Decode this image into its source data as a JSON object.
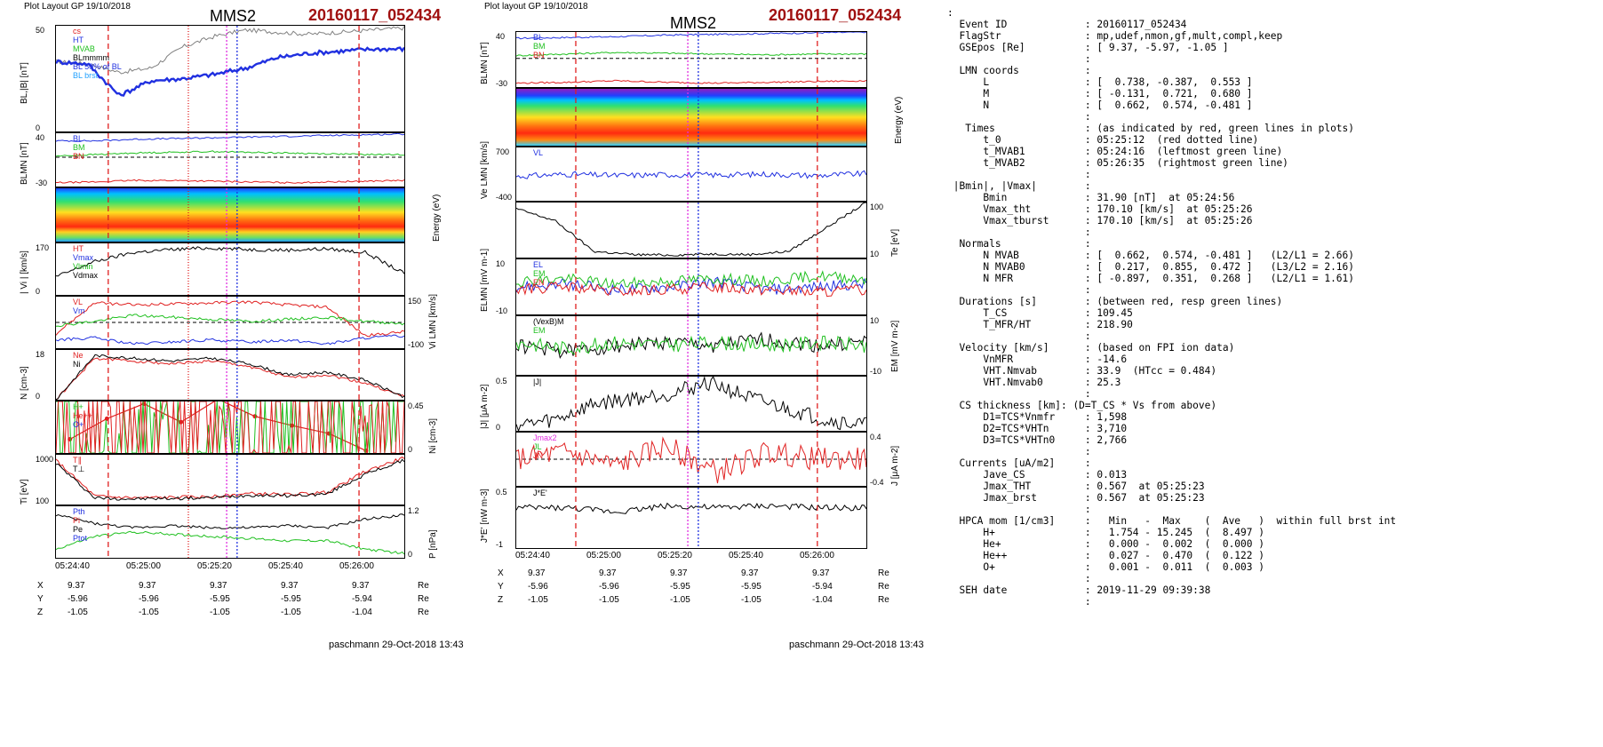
{
  "left_plot": {
    "header": "Plot Layout GP 19/10/2018",
    "title": "MMS2",
    "event": "20160117_052434",
    "footer": "paschmann 29-Oct-2018 13:43",
    "time_ticks": [
      "05:24:40",
      "05:25:00",
      "05:25:20",
      "05:25:40",
      "05:26:00"
    ],
    "coords": {
      "X": {
        "label": "X",
        "values": [
          "9.37",
          "9.37",
          "9.37",
          "9.37",
          "9.37"
        ],
        "unit": "Re"
      },
      "Y": {
        "label": "Y",
        "values": [
          "-5.96",
          "-5.96",
          "-5.95",
          "-5.95",
          "-5.94"
        ],
        "unit": "Re"
      },
      "Z": {
        "label": "Z",
        "values": [
          "-1.05",
          "-1.05",
          "-1.05",
          "-1.05",
          "-1.04"
        ],
        "unit": "Re"
      }
    },
    "ylabels": [
      "BL,|B| [nT]",
      "BLMN [nT]",
      "Energy (eV)",
      "| Vi | [km/s]",
      "Vi LMN [km/s]",
      "N [cm-3]",
      "Ni [cm-3]",
      "Ti [eV]",
      "P [nPa]"
    ],
    "legends": {
      "p1": [
        "cs",
        "HT",
        "MVAB",
        "BLmmmm",
        "BL 50% of BL",
        "BL brst"
      ],
      "p2": [
        "BL",
        "BM",
        "BN"
      ],
      "p4": [
        "HT",
        "Vmax",
        "Vlmin",
        "Vdmax"
      ],
      "p5": [
        "VL",
        "Vm"
      ],
      "p6": [
        "Ne",
        "Ni"
      ],
      "p7": [
        "H+",
        "He++",
        "O+"
      ],
      "p8": [
        "T∥",
        "T⊥"
      ],
      "p9": [
        "Pth",
        "Pi",
        "Pe",
        "Ptot"
      ]
    }
  },
  "mid_plot": {
    "header": "Plot layout GP 19/10/2018",
    "title": "MMS2",
    "event": "20160117_052434",
    "footer": "paschmann 29-Oct-2018 13:43",
    "time_ticks": [
      "05:24:40",
      "05:25:00",
      "05:25:20",
      "05:25:40",
      "05:26:00"
    ],
    "coords": {
      "X": {
        "label": "X",
        "values": [
          "9.37",
          "9.37",
          "9.37",
          "9.37",
          "9.37"
        ],
        "unit": "Re"
      },
      "Y": {
        "label": "Y",
        "values": [
          "-5.96",
          "-5.96",
          "-5.95",
          "-5.95",
          "-5.94"
        ],
        "unit": "Re"
      },
      "Z": {
        "label": "Z",
        "values": [
          "-1.05",
          "-1.05",
          "-1.05",
          "-1.05",
          "-1.04"
        ],
        "unit": "Re"
      }
    },
    "ylabels": [
      "BLMN [nT]",
      "Energy (eV)",
      "Ve LMN [km/s]",
      "Te [eV]",
      "ELMN [mV m-1]",
      "EM [mV m-2]",
      "|J| [μA m-2]",
      "J [μA m-2]",
      "J*E' [nW m-3]"
    ],
    "legends": {
      "p1": [
        "BL",
        "BM",
        "BN"
      ],
      "p3": [
        "VL"
      ],
      "p4": [],
      "p5": [
        "EL",
        "EM",
        "EN"
      ],
      "p6": [
        "(VexB)M",
        "EM"
      ],
      "p7": [
        "|J|"
      ],
      "p8": [
        "Jmax2",
        "JL",
        "JN"
      ],
      "p9": [
        "J*E'"
      ]
    }
  },
  "chart_data": [
    {
      "type": "line",
      "title": "MMS2 20160117_052434",
      "xlabel": "time",
      "x_ticks": [
        "05:24:40",
        "05:25:00",
        "05:25:20",
        "05:25:40",
        "05:26:00"
      ],
      "panels": [
        {
          "ylabel": "BL,|B| [nT]",
          "ylim": [
            0,
            50
          ],
          "series": [
            {
              "name": "|B|",
              "values": [
                33,
                32,
                28,
                30,
                40,
                45,
                48,
                47,
                46,
                47,
                48,
                49
              ]
            },
            {
              "name": "BL",
              "values": [
                33,
                32,
                17,
                24,
                25,
                27,
                30,
                35,
                37,
                38,
                39,
                39
              ]
            }
          ]
        },
        {
          "ylabel": "BLMN [nT]",
          "ylim": [
            -30,
            40
          ],
          "series": [
            {
              "name": "BL",
              "values": [
                30,
                30,
                32,
                33,
                34,
                35,
                36,
                37,
                38,
                39
              ]
            },
            {
              "name": "BM",
              "values": [
                10,
                12,
                14,
                15,
                16,
                15,
                14,
                13,
                12,
                12
              ]
            },
            {
              "name": "BN",
              "values": [
                -25,
                -24,
                -22,
                -22,
                -23,
                -24,
                -25,
                -24,
                -23,
                -22
              ]
            }
          ]
        },
        {
          "ylabel": "Energy (eV)",
          "ylim": [
            10,
            10000
          ],
          "type": "heatmap"
        },
        {
          "ylabel": "| Vi | [km/s]",
          "ylim": [
            0,
            170
          ],
          "series": [
            {
              "name": "|Vi|",
              "values": [
                60,
                110,
                140,
                150,
                155,
                150,
                148,
                152,
                140,
                70
              ]
            }
          ]
        },
        {
          "ylabel": "Vi LMN [km/s]",
          "ylim": [
            -100,
            150
          ],
          "series": [
            {
              "name": "VL",
              "values": [
                -30,
                120,
                110,
                115,
                120,
                125,
                110,
                100,
                -40,
                -20
              ]
            },
            {
              "name": "VM",
              "values": [
                10,
                30,
                60,
                50,
                40,
                30,
                40,
                50,
                30,
                20
              ]
            },
            {
              "name": "VN",
              "values": [
                -60,
                -50,
                -80,
                -70,
                -60,
                -70,
                -60,
                -80,
                -50,
                -40
              ]
            }
          ]
        },
        {
          "ylabel": "N [cm-3]",
          "ylim": [
            0,
            18
          ],
          "series": [
            {
              "name": "Ne",
              "values": [
                0,
                15,
                14,
                13,
                14,
                12,
                8,
                9,
                6,
                1
              ]
            },
            {
              "name": "Ni",
              "values": [
                0,
                16,
                15,
                14,
                15,
                13,
                9,
                10,
                7,
                1
              ]
            }
          ]
        },
        {
          "ylabel": "Ni [cm-3]",
          "ylim": [
            0,
            0.45
          ],
          "series": [
            {
              "name": "He++",
              "x": [
                "05:24:35",
                "05:24:50",
                "05:25:00",
                "05:25:10",
                "05:25:20",
                "05:25:30",
                "05:25:45",
                "05:25:55",
                "05:26:05"
              ],
              "values": [
                0.12,
                0.3,
                0.43,
                0.27,
                0.47,
                0.32,
                0.24,
                0.17,
                0.02
              ]
            },
            {
              "name": "H+",
              "values": [
                0.0,
                0.0,
                0.0,
                0.0,
                0.0,
                0.0,
                0.0,
                0.0,
                0.0
              ]
            },
            {
              "name": "O+",
              "values": [
                0.0,
                0.0,
                0.0,
                0.0,
                0.0,
                0.0,
                0.0,
                0.0,
                0.0
              ]
            }
          ]
        },
        {
          "ylabel": "Ti [eV]",
          "ylim": [
            100,
            1000
          ],
          "series": [
            {
              "name": "T∥",
              "values": [
                900,
                250,
                220,
                230,
                240,
                300,
                280,
                320,
                700,
                950
              ]
            },
            {
              "name": "T⊥",
              "values": [
                850,
                220,
                200,
                210,
                220,
                270,
                260,
                290,
                650,
                900
              ]
            }
          ]
        },
        {
          "ylabel": "P [nPa]",
          "ylim": [
            0,
            1.2
          ],
          "series": [
            {
              "name": "Pth",
              "values": [
                1.0,
                0.8,
                0.7,
                0.75,
                0.7,
                0.7,
                0.75,
                0.7,
                0.9,
                1.0
              ]
            },
            {
              "name": "Pi",
              "values": [
                0.2,
                0.5,
                0.6,
                0.55,
                0.5,
                0.45,
                0.4,
                0.4,
                0.2,
                0.1
              ]
            }
          ]
        }
      ]
    },
    {
      "type": "line",
      "title": "MMS2 20160117_052434",
      "xlabel": "time",
      "x_ticks": [
        "05:24:40",
        "05:25:00",
        "05:25:20",
        "05:25:40",
        "05:26:00"
      ],
      "panels": [
        {
          "ylabel": "BLMN [nT]",
          "ylim": [
            -30,
            40
          ],
          "series": [
            {
              "name": "BL",
              "values": [
                32,
                33,
                34,
                36,
                37,
                38,
                39,
                40
              ]
            },
            {
              "name": "BM",
              "values": [
                10,
                12,
                14,
                13,
                12,
                11,
                12,
                12
              ]
            },
            {
              "name": "BN",
              "values": [
                -25,
                -24,
                -22,
                -24,
                -25,
                -24,
                -23,
                -22
              ]
            }
          ]
        },
        {
          "ylabel": "Energy (eV)",
          "ylim": [
            10,
            10000
          ],
          "type": "heatmap"
        },
        {
          "ylabel": "Ve LMN [km/s]",
          "ylim": [
            -400,
            700
          ],
          "series": [
            {
              "name": "VL",
              "values": [
                100,
                150,
                120,
                140,
                130,
                150,
                120,
                160
              ]
            }
          ]
        },
        {
          "ylabel": "Te [eV]",
          "ylim": [
            10,
            100
          ],
          "series": [
            {
              "name": "Te",
              "values": [
                90,
                70,
                20,
                15,
                14,
                16,
                15,
                20,
                60,
                100
              ]
            }
          ]
        },
        {
          "ylabel": "ELMN [mV m-1]",
          "ylim": [
            -10,
            10
          ],
          "series": [
            {
              "name": "EL",
              "values": [
                0,
                1,
                -1,
                0,
                2,
                -1,
                0,
                1
              ]
            },
            {
              "name": "EM",
              "values": [
                2,
                3,
                1,
                2,
                3,
                2,
                4,
                3
              ]
            },
            {
              "name": "EN",
              "values": [
                -1,
                0,
                -2,
                -1,
                0,
                -1,
                -2,
                -1
              ]
            }
          ]
        },
        {
          "ylabel": "EM [mV m-2]",
          "ylim": [
            -10,
            10
          ],
          "series": [
            {
              "name": "(VexB)M",
              "values": [
                0,
                -2,
                0,
                1,
                0,
                2,
                0,
                1
              ]
            },
            {
              "name": "EM",
              "values": [
                1,
                -1,
                1,
                0,
                1,
                0,
                1,
                0
              ]
            }
          ]
        },
        {
          "ylabel": "|J| [μA m-2]",
          "ylim": [
            0,
            0.5
          ],
          "series": [
            {
              "name": "|J|",
              "values": [
                0.05,
                0.1,
                0.25,
                0.3,
                0.35,
                0.45,
                0.3,
                0.2,
                0.1,
                0.05
              ]
            }
          ]
        },
        {
          "ylabel": "J [μA m-2]",
          "ylim": [
            -0.4,
            0.4
          ],
          "series": [
            {
              "name": "Jmax2",
              "values": [
                0,
                0.1,
                -0.1,
                0.2,
                -0.2,
                0.1,
                0,
                0
              ]
            }
          ]
        },
        {
          "ylabel": "J*E' [nW m-3]",
          "ylim": [
            -1.0,
            0.5
          ],
          "series": [
            {
              "name": "J*E'",
              "values": [
                0,
                0,
                -0.1,
                0.05,
                0,
                0.05,
                0,
                0
              ]
            }
          ]
        }
      ]
    }
  ],
  "info": [
    ":",
    "  Event ID             : 20160117_052434",
    "  FlagStr              : mp,udef,nmon,gf,mult,compl,keep",
    "  GSEpos [Re]          : [ 9.37, -5.97, -1.05 ]",
    "                       :",
    "  LMN coords           :",
    "      L                : [  0.738, -0.387,  0.553 ]",
    "      M                : [ -0.131,  0.721,  0.680 ]",
    "      N                : [  0.662,  0.574, -0.481 ]",
    "                       :",
    "   Times               : (as indicated by red, green lines in plots)",
    "      t_0              : 05:25:12  (red dotted line)",
    "      t_MVAB1          : 05:24:16  (leftmost green line)",
    "      t_MVAB2          : 05:26:35  (rightmost green line)",
    "                       :",
    " |Bmin|, |Vmax|        :",
    "      Bmin             : 31.90 [nT]  at 05:24:56",
    "      Vmax_tht         : 170.10 [km/s]  at 05:25:26",
    "      Vmax_tburst      : 170.10 [km/s]  at 05:25:26",
    "                       :",
    "  Normals              :",
    "      N MVAB           : [  0.662,  0.574, -0.481 ]   (L2/L1 = 2.66)",
    "      N MVAB0          : [  0.217,  0.855,  0.472 ]   (L3/L2 = 2.16)",
    "      N MFR            : [ -0.897,  0.351,  0.268 ]   (L2/L1 = 1.61)",
    "                       :",
    "  Durations [s]        : (between red, resp green lines)",
    "      T_CS             : 109.45",
    "      T_MFR/HT         : 218.90",
    "                       :",
    "  Velocity [km/s]      : (based on FPI ion data)",
    "      VnMFR            : -14.6",
    "      VHT.Nmvab        : 33.9  (HTcc = 0.484)",
    "      VHT.Nmvab0       : 25.3",
    "                       :",
    "  CS thickness [km]: (D=T_CS * Vs from above)",
    "      D1=TCS*Vnmfr     : 1,598",
    "      D2=TCS*VHTn      : 3,710",
    "      D3=TCS*VHTn0     : 2,766",
    "                       :",
    "  Currents [uA/m2]     :",
    "      Jave_CS          : 0.013",
    "      Jmax_THT         : 0.567  at 05:25:23",
    "      Jmax_brst        : 0.567  at 05:25:23",
    "                       :",
    "  HPCA mom [1/cm3]     :   Min   -  Max    (  Ave   )  within full brst int",
    "      H+               :   1.754 - 15.245  (  8.497 )",
    "      He+              :   0.000 -  0.002  (  0.000 )",
    "      He++             :   0.027 -  0.470  (  0.122 )",
    "      O+               :   0.001 -  0.011  (  0.003 )",
    "                       :",
    "  SEH date             : 2019-11-29 09:39:38",
    "                       :"
  ]
}
